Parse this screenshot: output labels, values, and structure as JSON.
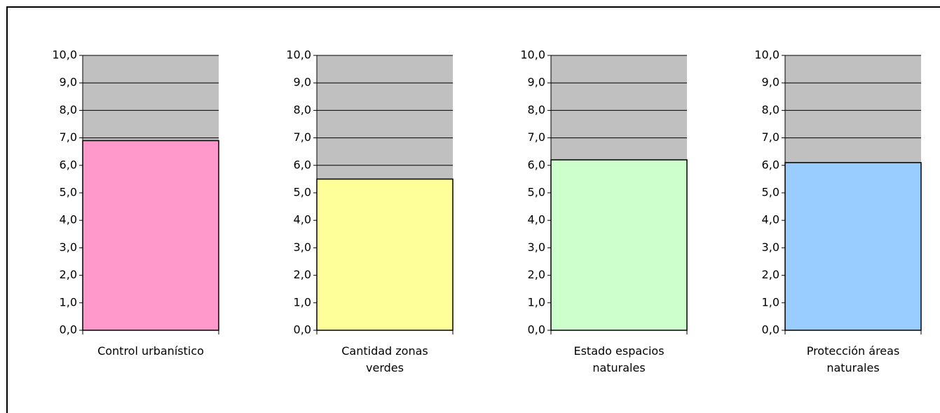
{
  "chart_data": [
    {
      "type": "bar",
      "categories": [
        "Control urbanístico"
      ],
      "values": [
        6.9
      ],
      "color": "#ff99cc",
      "ylim": [
        0,
        10
      ],
      "yticks": [
        {
          "value": 0,
          "label": "0,0"
        },
        {
          "value": 1,
          "label": "1,0"
        },
        {
          "value": 2,
          "label": "2,0"
        },
        {
          "value": 3,
          "label": "3,0"
        },
        {
          "value": 4,
          "label": "4,0"
        },
        {
          "value": 5,
          "label": "5,0"
        },
        {
          "value": 6,
          "label": "6,0"
        },
        {
          "value": 7,
          "label": "7,0"
        },
        {
          "value": 8,
          "label": "8,0"
        },
        {
          "value": 9,
          "label": "9,0"
        },
        {
          "value": 10,
          "label": "10,0"
        }
      ],
      "grid": true
    },
    {
      "type": "bar",
      "categories": [
        "Cantidad zonas verdes"
      ],
      "values": [
        5.5
      ],
      "color": "#ffff99",
      "ylim": [
        0,
        10
      ],
      "yticks": [
        {
          "value": 0,
          "label": "0,0"
        },
        {
          "value": 1,
          "label": "1,0"
        },
        {
          "value": 2,
          "label": "2,0"
        },
        {
          "value": 3,
          "label": "3,0"
        },
        {
          "value": 4,
          "label": "4,0"
        },
        {
          "value": 5,
          "label": "5,0"
        },
        {
          "value": 6,
          "label": "6,0"
        },
        {
          "value": 7,
          "label": "7,0"
        },
        {
          "value": 8,
          "label": "8,0"
        },
        {
          "value": 9,
          "label": "9,0"
        },
        {
          "value": 10,
          "label": "10,0"
        }
      ],
      "grid": true
    },
    {
      "type": "bar",
      "categories": [
        "Estado espacios naturales"
      ],
      "values": [
        6.2
      ],
      "color": "#ccffcc",
      "ylim": [
        0,
        10
      ],
      "yticks": [
        {
          "value": 0,
          "label": "0,0"
        },
        {
          "value": 1,
          "label": "1,0"
        },
        {
          "value": 2,
          "label": "2,0"
        },
        {
          "value": 3,
          "label": "3,0"
        },
        {
          "value": 4,
          "label": "4,0"
        },
        {
          "value": 5,
          "label": "5,0"
        },
        {
          "value": 6,
          "label": "6,0"
        },
        {
          "value": 7,
          "label": "7,0"
        },
        {
          "value": 8,
          "label": "8,0"
        },
        {
          "value": 9,
          "label": "9,0"
        },
        {
          "value": 10,
          "label": "10,0"
        }
      ],
      "grid": true
    },
    {
      "type": "bar",
      "categories": [
        "Protección áreas naturales"
      ],
      "values": [
        6.1
      ],
      "color": "#99ccff",
      "ylim": [
        0,
        10
      ],
      "yticks": [
        {
          "value": 0,
          "label": "0,0"
        },
        {
          "value": 1,
          "label": "1,0"
        },
        {
          "value": 2,
          "label": "2,0"
        },
        {
          "value": 3,
          "label": "3,0"
        },
        {
          "value": 4,
          "label": "4,0"
        },
        {
          "value": 5,
          "label": "5,0"
        },
        {
          "value": 6,
          "label": "6,0"
        },
        {
          "value": 7,
          "label": "7,0"
        },
        {
          "value": 8,
          "label": "8,0"
        },
        {
          "value": 9,
          "label": "9,0"
        },
        {
          "value": 10,
          "label": "10,0"
        }
      ],
      "grid": true
    }
  ]
}
